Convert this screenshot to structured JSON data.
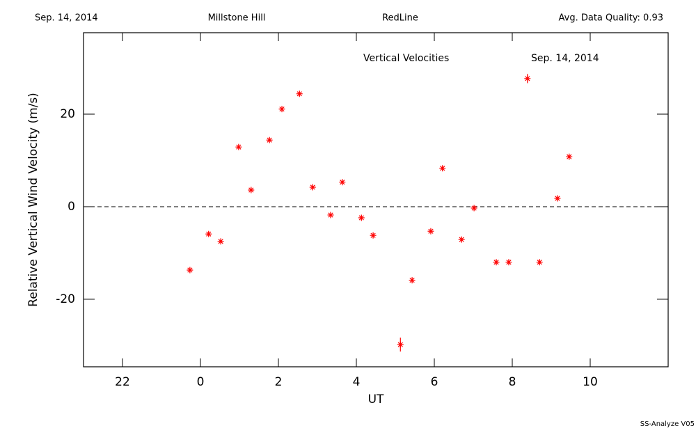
{
  "header": {
    "date": "Sep. 14, 2014",
    "site": "Millstone Hill",
    "line": "RedLine",
    "quality": "Avg. Data Quality: 0.93"
  },
  "footer": "SS-Analyze V05",
  "chart_data": {
    "type": "scatter",
    "title": "Vertical Velocities",
    "subtitle": "Sep. 14, 2014",
    "x_label": "UT",
    "y_label": "Relative Vertical Wind Velocity (m/s)",
    "xlim": [
      -3,
      12
    ],
    "ylim": [
      -34.6,
      37.6
    ],
    "xticks": [
      {
        "value": -2,
        "label": "22"
      },
      0,
      2,
      4,
      6,
      8,
      10
    ],
    "yticks": [
      -20,
      0,
      20
    ],
    "zero_line": true,
    "series": [
      {
        "color": "#ff0000",
        "x": [
          -0.27,
          0.21,
          0.52,
          0.98,
          1.3,
          1.77,
          2.09,
          2.54,
          2.88,
          3.34,
          3.64,
          4.13,
          4.43,
          5.13,
          5.43,
          5.91,
          6.21,
          6.7,
          7.02,
          7.59,
          7.91,
          8.39,
          8.7,
          9.16,
          9.46
        ],
        "values": [
          -13.7,
          -5.9,
          -7.5,
          12.9,
          3.6,
          14.4,
          21.1,
          24.4,
          4.2,
          -1.8,
          5.3,
          -2.4,
          -6.2,
          -29.8,
          -15.9,
          -5.3,
          8.3,
          -7.1,
          -0.3,
          -12.0,
          -12.0,
          27.7,
          -12.0,
          1.8,
          10.8
        ],
        "errors": [
          0.5,
          0.5,
          0.5,
          0.5,
          0.5,
          0.5,
          0.5,
          0.5,
          0.5,
          0.5,
          0.5,
          0.5,
          0.5,
          1.5,
          0.6,
          0.5,
          0.5,
          0.5,
          0.5,
          0.5,
          0.5,
          1.0,
          0.5,
          0.5,
          0.5
        ]
      }
    ]
  }
}
